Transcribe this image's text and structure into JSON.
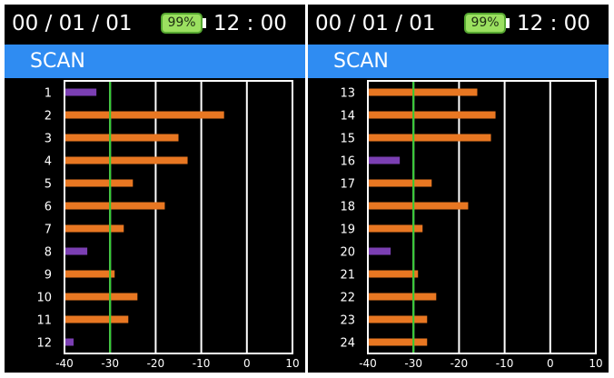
{
  "screens": [
    {
      "status": {
        "date": "00 / 01 / 01",
        "battery": "99%",
        "time": "12 : 00"
      },
      "title": "SCAN",
      "chart_data": {
        "type": "bar",
        "orientation": "horizontal",
        "categories": [
          "1",
          "2",
          "3",
          "4",
          "5",
          "6",
          "7",
          "8",
          "9",
          "10",
          "11",
          "12"
        ],
        "values": [
          -33,
          -5,
          -15,
          -13,
          -25,
          -18,
          -27,
          -35,
          -29,
          -24,
          -26,
          -38
        ],
        "bar_colors": [
          "#7b3fb3",
          "#e87722",
          "#e87722",
          "#e87722",
          "#e87722",
          "#e87722",
          "#e87722",
          "#7b3fb3",
          "#e87722",
          "#e87722",
          "#e87722",
          "#7b3fb3"
        ],
        "x_ticks": [
          -40,
          -30,
          -20,
          -10,
          0,
          10
        ],
        "xlim": [
          -40,
          10
        ],
        "threshold": -30,
        "threshold_color": "#33cc33"
      }
    },
    {
      "status": {
        "date": "00 / 01 / 01",
        "battery": "99%",
        "time": "12 : 00"
      },
      "title": "SCAN",
      "chart_data": {
        "type": "bar",
        "orientation": "horizontal",
        "categories": [
          "13",
          "14",
          "15",
          "16",
          "17",
          "18",
          "19",
          "20",
          "21",
          "22",
          "23",
          "24"
        ],
        "values": [
          -16,
          -12,
          -13,
          -33,
          -26,
          -18,
          -28,
          -35,
          -29,
          -25,
          -27,
          -27
        ],
        "bar_colors": [
          "#e87722",
          "#e87722",
          "#e87722",
          "#7b3fb3",
          "#e87722",
          "#e87722",
          "#e87722",
          "#7b3fb3",
          "#e87722",
          "#e87722",
          "#e87722",
          "#e87722"
        ],
        "x_ticks": [
          -40,
          -30,
          -20,
          -10,
          0,
          10
        ],
        "xlim": [
          -40,
          10
        ],
        "threshold": -30,
        "threshold_color": "#33cc33"
      }
    }
  ]
}
